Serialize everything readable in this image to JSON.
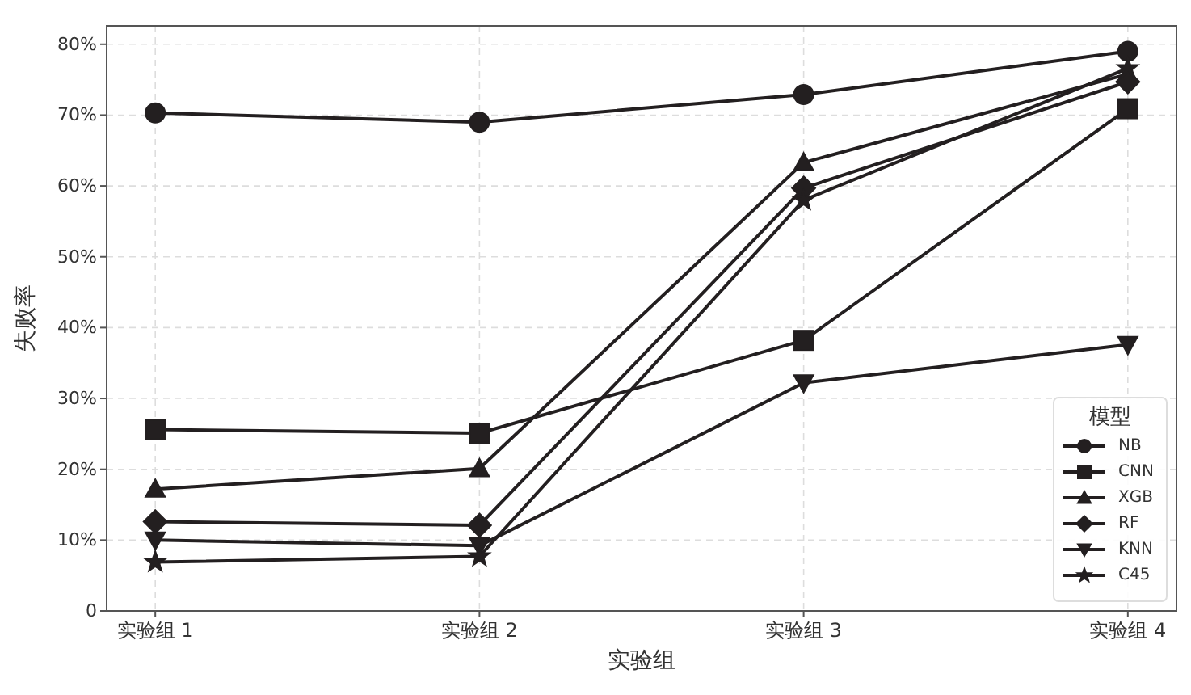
{
  "chart_data": {
    "type": "line",
    "xlabel": "实验组",
    "ylabel": "失败率",
    "legend_title": "模型",
    "categories": [
      "实验组 1",
      "实验组 2",
      "实验组 3",
      "实验组 4"
    ],
    "ylim": [
      0,
      82.6
    ],
    "yticks": [
      {
        "value": 0,
        "label": "0"
      },
      {
        "value": 10,
        "label": "10%"
      },
      {
        "value": 20,
        "label": "20%"
      },
      {
        "value": 30,
        "label": "30%"
      },
      {
        "value": 40,
        "label": "40%"
      },
      {
        "value": 50,
        "label": "50%"
      },
      {
        "value": 60,
        "label": "60%"
      },
      {
        "value": 70,
        "label": "70%"
      },
      {
        "value": 80,
        "label": "80%"
      }
    ],
    "grid": true,
    "legend": "bottom right",
    "line_style": "solid",
    "series": [
      {
        "name": "NB",
        "color": "#231f20",
        "marker": "circle",
        "values": [
          70.3,
          69.0,
          72.9,
          79.0
        ]
      },
      {
        "name": "CNN",
        "color": "#231f20",
        "marker": "square",
        "values": [
          25.6,
          25.1,
          38.2,
          70.9
        ]
      },
      {
        "name": "XGB",
        "color": "#231f20",
        "marker": "triangle",
        "values": [
          17.2,
          20.1,
          63.3,
          75.8
        ]
      },
      {
        "name": "RF",
        "color": "#231f20",
        "marker": "diamond",
        "values": [
          12.6,
          12.1,
          59.7,
          74.7
        ]
      },
      {
        "name": "KNN",
        "color": "#231f20",
        "marker": "triangle-down",
        "values": [
          10.0,
          9.2,
          32.2,
          37.6
        ]
      },
      {
        "name": "C45",
        "color": "#231f20",
        "marker": "star",
        "values": [
          6.9,
          7.7,
          58.0,
          76.6
        ]
      }
    ]
  }
}
